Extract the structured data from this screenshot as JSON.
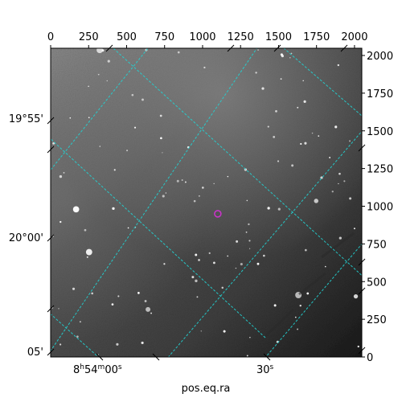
{
  "figure": {
    "kind": "astronomical-image-with-wcs-grid",
    "image_description_colormap": "gray",
    "grid_color": "#22d3d3",
    "marker_color": "#cc33cc",
    "pixel_axes": {
      "x_ticks": [
        "0",
        "250",
        "500",
        "750",
        "1000",
        "1250",
        "1500",
        "1750",
        "2000"
      ],
      "y_ticks": [
        "0",
        "250",
        "500",
        "750",
        "1000",
        "1250",
        "1500",
        "1750",
        "2000"
      ],
      "x_range": [
        0,
        2048
      ],
      "y_range": [
        0,
        2048
      ]
    },
    "world_axes": {
      "ra_label": "pos.eq.ra",
      "ra_ticks": [
        {
          "hms_h": "8",
          "hms_m": "54",
          "hms_s": "00",
          "text_full": "8h54m00s"
        },
        {
          "hms_s": "30",
          "text_full": "30s"
        }
      ],
      "dec_ticks": [
        "19°55'",
        "20°00'",
        "05'"
      ]
    },
    "marked_source_pixel": [
      1100,
      950
    ]
  }
}
